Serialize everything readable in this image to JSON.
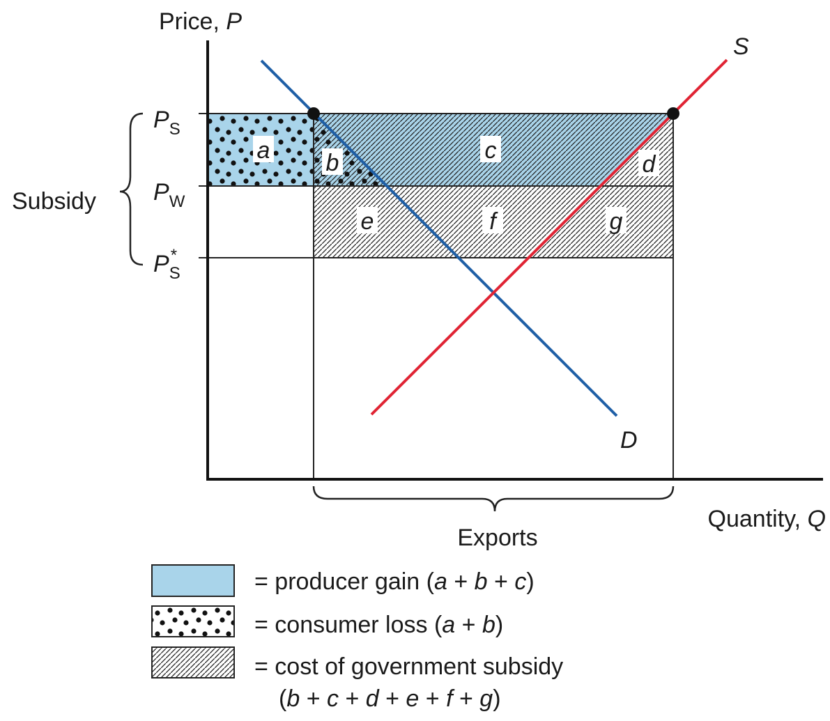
{
  "axis_labels": {
    "y": [
      "Price, ",
      "P"
    ],
    "x": [
      "Quantity, ",
      "Q"
    ]
  },
  "curves": {
    "supply": "S",
    "demand": "D"
  },
  "price_levels": [
    [
      "P",
      "S"
    ],
    [
      "P",
      "W"
    ],
    [
      "P",
      "S",
      "*"
    ]
  ],
  "brackets": {
    "left": "Subsidy",
    "bottom": "Exports"
  },
  "areas": [
    "a",
    "b",
    "c",
    "d",
    "e",
    "f",
    "g"
  ],
  "legend": [
    [
      [
        "= producer gain (",
        "a",
        " + ",
        "b",
        " + ",
        "c",
        ")"
      ]
    ],
    [
      [
        "= consumer loss (",
        "a",
        " + ",
        "b",
        ")"
      ]
    ],
    [
      [
        "= cost of government subsidy"
      ],
      [
        "(",
        "b",
        " + ",
        "c",
        " + ",
        "d",
        " + ",
        "e",
        " + ",
        "f",
        " + ",
        "g",
        ")"
      ]
    ]
  ]
}
